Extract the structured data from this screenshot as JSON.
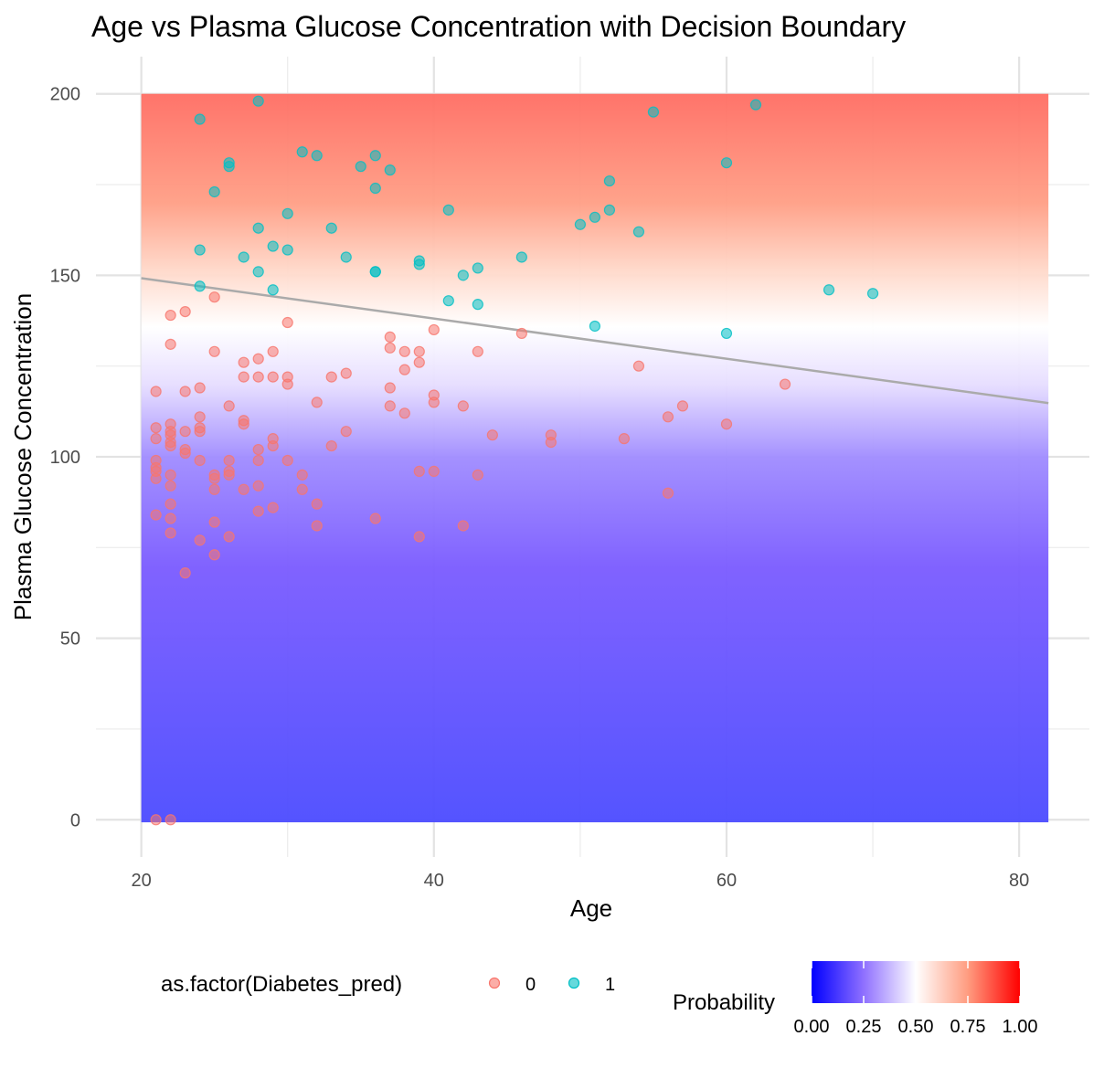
{
  "chart_data": {
    "type": "scatter",
    "title": "Age vs Plasma Glucose Concentration with Decision Boundary",
    "xlabel": "Age",
    "ylabel": "Plasma Glucose Concentration",
    "xlim": [
      20,
      82
    ],
    "ylim": [
      0,
      200
    ],
    "x_ticks": [
      20,
      40,
      60,
      80
    ],
    "y_ticks": [
      0,
      50,
      100,
      150,
      200
    ],
    "grid": true,
    "background": {
      "type": "probability-gradient",
      "colors": {
        "low": "#0000ff",
        "mid": "#ffffff",
        "high": "#ff0000"
      }
    },
    "decision_boundary": {
      "x": [
        20,
        82
      ],
      "y": [
        149.2,
        114.8
      ],
      "color": "#aaaaaa"
    },
    "series": [
      {
        "name": "0",
        "color": "#f8766d",
        "points": [
          [
            21,
            118
          ],
          [
            21,
            108
          ],
          [
            21,
            105
          ],
          [
            21,
            99
          ],
          [
            21,
            97
          ],
          [
            21,
            96
          ],
          [
            21,
            94
          ],
          [
            21,
            84
          ],
          [
            21,
            0
          ],
          [
            22,
            139
          ],
          [
            22,
            131
          ],
          [
            22,
            109
          ],
          [
            22,
            107
          ],
          [
            22,
            106
          ],
          [
            22,
            104
          ],
          [
            22,
            103
          ],
          [
            22,
            95
          ],
          [
            22,
            92
          ],
          [
            22,
            87
          ],
          [
            22,
            83
          ],
          [
            22,
            79
          ],
          [
            22,
            0
          ],
          [
            23,
            140
          ],
          [
            23,
            118
          ],
          [
            23,
            107
          ],
          [
            23,
            102
          ],
          [
            23,
            101
          ],
          [
            23,
            68
          ],
          [
            24,
            119
          ],
          [
            24,
            111
          ],
          [
            24,
            108
          ],
          [
            24,
            107
          ],
          [
            24,
            99
          ],
          [
            24,
            77
          ],
          [
            25,
            144
          ],
          [
            25,
            129
          ],
          [
            25,
            95
          ],
          [
            25,
            94
          ],
          [
            25,
            91
          ],
          [
            25,
            82
          ],
          [
            25,
            73
          ],
          [
            26,
            114
          ],
          [
            26,
            99
          ],
          [
            26,
            96
          ],
          [
            26,
            95
          ],
          [
            26,
            78
          ],
          [
            27,
            126
          ],
          [
            27,
            122
          ],
          [
            27,
            110
          ],
          [
            27,
            109
          ],
          [
            27,
            91
          ],
          [
            28,
            127
          ],
          [
            28,
            122
          ],
          [
            28,
            102
          ],
          [
            28,
            99
          ],
          [
            28,
            92
          ],
          [
            28,
            85
          ],
          [
            29,
            129
          ],
          [
            29,
            122
          ],
          [
            29,
            105
          ],
          [
            29,
            103
          ],
          [
            29,
            86
          ],
          [
            30,
            137
          ],
          [
            30,
            122
          ],
          [
            30,
            120
          ],
          [
            30,
            99
          ],
          [
            31,
            95
          ],
          [
            31,
            91
          ],
          [
            32,
            115
          ],
          [
            32,
            87
          ],
          [
            32,
            81
          ],
          [
            33,
            122
          ],
          [
            33,
            103
          ],
          [
            34,
            123
          ],
          [
            34,
            107
          ],
          [
            36,
            83
          ],
          [
            37,
            133
          ],
          [
            37,
            130
          ],
          [
            37,
            119
          ],
          [
            37,
            114
          ],
          [
            38,
            129
          ],
          [
            38,
            124
          ],
          [
            38,
            112
          ],
          [
            39,
            129
          ],
          [
            39,
            126
          ],
          [
            39,
            96
          ],
          [
            39,
            78
          ],
          [
            40,
            135
          ],
          [
            40,
            117
          ],
          [
            40,
            115
          ],
          [
            40,
            96
          ],
          [
            42,
            114
          ],
          [
            42,
            81
          ],
          [
            43,
            129
          ],
          [
            43,
            95
          ],
          [
            44,
            106
          ],
          [
            46,
            134
          ],
          [
            48,
            106
          ],
          [
            48,
            104
          ],
          [
            53,
            105
          ],
          [
            54,
            125
          ],
          [
            56,
            111
          ],
          [
            56,
            90
          ],
          [
            57,
            114
          ],
          [
            60,
            109
          ],
          [
            64,
            120
          ]
        ]
      },
      {
        "name": "1",
        "color": "#00bfc4",
        "points": [
          [
            24,
            193
          ],
          [
            24,
            157
          ],
          [
            24,
            147
          ],
          [
            25,
            173
          ],
          [
            26,
            181
          ],
          [
            26,
            180
          ],
          [
            27,
            155
          ],
          [
            28,
            198
          ],
          [
            28,
            163
          ],
          [
            28,
            151
          ],
          [
            29,
            158
          ],
          [
            29,
            146
          ],
          [
            30,
            167
          ],
          [
            30,
            157
          ],
          [
            31,
            184
          ],
          [
            32,
            183
          ],
          [
            33,
            163
          ],
          [
            34,
            155
          ],
          [
            35,
            180
          ],
          [
            36,
            183
          ],
          [
            36,
            174
          ],
          [
            36,
            151
          ],
          [
            36,
            151
          ],
          [
            37,
            179
          ],
          [
            39,
            154
          ],
          [
            39,
            153
          ],
          [
            41,
            168
          ],
          [
            41,
            143
          ],
          [
            42,
            150
          ],
          [
            43,
            152
          ],
          [
            43,
            142
          ],
          [
            46,
            155
          ],
          [
            50,
            164
          ],
          [
            51,
            166
          ],
          [
            51,
            136
          ],
          [
            52,
            176
          ],
          [
            52,
            168
          ],
          [
            54,
            162
          ],
          [
            55,
            195
          ],
          [
            60,
            181
          ],
          [
            60,
            134
          ],
          [
            62,
            197
          ],
          [
            67,
            146
          ],
          [
            70,
            145
          ]
        ]
      }
    ],
    "legend": {
      "position": "bottom",
      "points_title": "as.factor(Diabetes_pred)",
      "points_keys": [
        "0",
        "1"
      ],
      "gradient_title": "Probability",
      "gradient_ticks": [
        "0.00",
        "0.25",
        "0.50",
        "0.75",
        "1.00"
      ]
    }
  }
}
